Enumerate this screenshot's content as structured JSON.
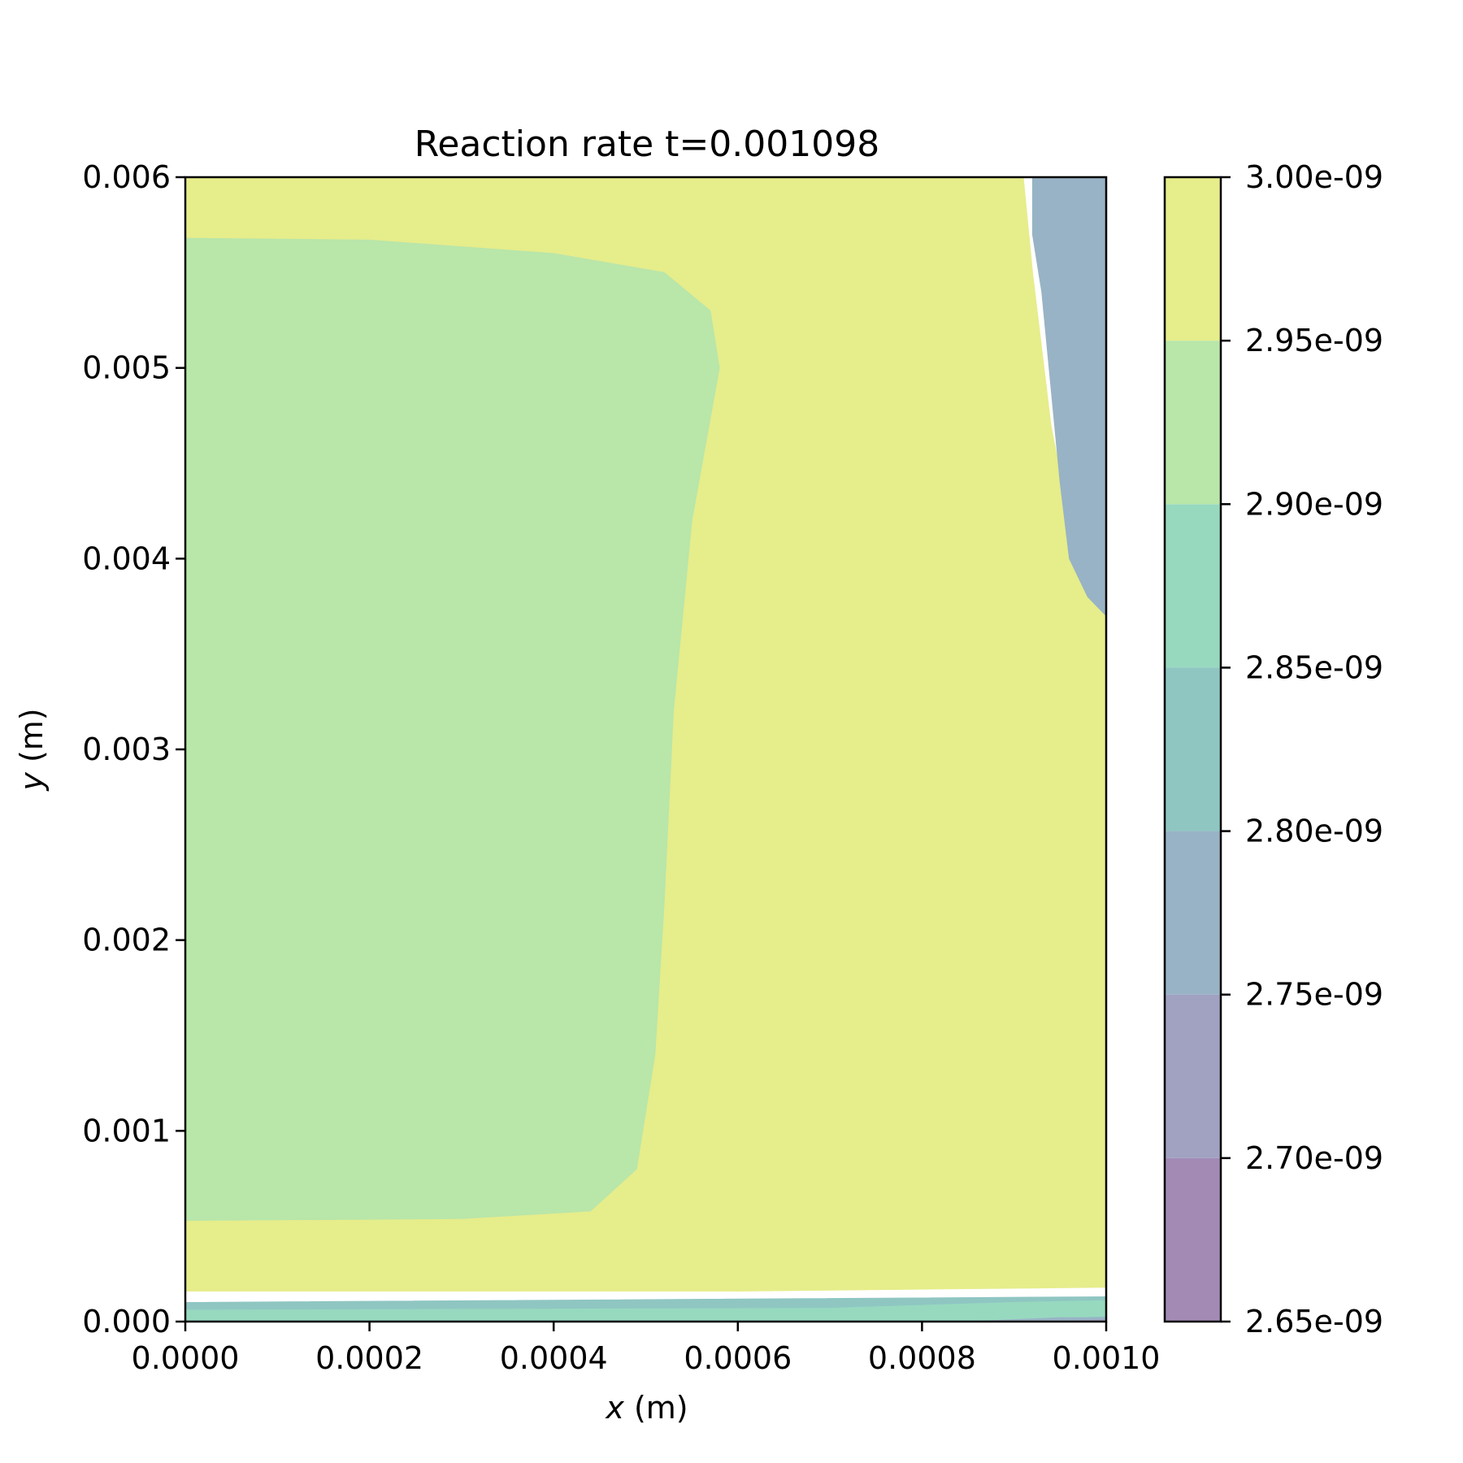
{
  "chart_data": {
    "type": "heatmap",
    "subtype": "filled-contour",
    "title": "Reaction rate t=0.001098",
    "xlabel": {
      "var": "x",
      "unit": " (m)"
    },
    "ylabel": {
      "var": "y",
      "unit": " (m)"
    },
    "xlim": [
      0,
      0.001
    ],
    "ylim": [
      0,
      0.006
    ],
    "x_ticks": [
      "0.0000",
      "0.0002",
      "0.0004",
      "0.0006",
      "0.0008",
      "0.0010"
    ],
    "y_ticks": [
      "0.000",
      "0.001",
      "0.002",
      "0.003",
      "0.004",
      "0.005",
      "0.006"
    ],
    "colorbar": {
      "levels": [
        2.65e-09,
        2.7e-09,
        2.75e-09,
        2.8e-09,
        2.85e-09,
        2.9e-09,
        2.95e-09,
        3e-09
      ],
      "tick_labels": [
        "2.65e-09",
        "2.70e-09",
        "2.75e-09",
        "2.80e-09",
        "2.85e-09",
        "2.90e-09",
        "2.95e-09",
        "3.00e-09"
      ],
      "band_colors": [
        "#a38ab5",
        "#a1a1c1",
        "#98b3c5",
        "#8fc6c2",
        "#97d9bf",
        "#b9e6a9",
        "#e6ed8b"
      ]
    },
    "regions": [
      {
        "band": "2.95e-09 – 3.00e-09",
        "color": "#e6ed8b",
        "polygon": [
          [
            0,
            0.00016
          ],
          [
            0.0006,
            0.00016
          ],
          [
            0.001,
            0.00018
          ],
          [
            0.001,
            0.0037
          ],
          [
            0.00098,
            0.0038
          ],
          [
            0.00096,
            0.0042
          ],
          [
            0.00094,
            0.0047
          ],
          [
            0.00092,
            0.0055
          ],
          [
            0.00091,
            0.006
          ],
          [
            0,
            0.006
          ]
        ]
      },
      {
        "band": "2.90e-09 – 2.95e-09",
        "color": "#b9e6a9",
        "polygon": [
          [
            0,
            0.00053
          ],
          [
            0.0003,
            0.00054
          ],
          [
            0.00044,
            0.00058
          ],
          [
            0.00049,
            0.0008
          ],
          [
            0.00051,
            0.0014
          ],
          [
            0.00052,
            0.0022
          ],
          [
            0.00053,
            0.0032
          ],
          [
            0.00055,
            0.0042
          ],
          [
            0.00058,
            0.005
          ],
          [
            0.00057,
            0.0053
          ],
          [
            0.00052,
            0.0055
          ],
          [
            0.0004,
            0.0056
          ],
          [
            0.0002,
            0.00567
          ],
          [
            0,
            0.00568
          ]
        ]
      },
      {
        "band": "2.75e-09 – 2.80e-09",
        "color": "#98b3c5",
        "polygon": [
          [
            0.00092,
            0.006
          ],
          [
            0.00092,
            0.0057
          ],
          [
            0.00093,
            0.0054
          ],
          [
            0.00094,
            0.0049
          ],
          [
            0.00095,
            0.0044
          ],
          [
            0.00096,
            0.004
          ],
          [
            0.00098,
            0.0038
          ],
          [
            0.001,
            0.0037
          ],
          [
            0.001,
            0.006
          ]
        ]
      },
      {
        "band": "2.80e-09 – 2.85e-09",
        "color": "#8fc6c2",
        "polygon": [
          [
            0,
            0.0001
          ],
          [
            0.001,
            0.00013
          ],
          [
            0.001,
            0.0
          ],
          [
            0,
            0.0
          ]
        ]
      },
      {
        "band": "2.85e-09 – 2.90e-09",
        "color": "#97d9bf",
        "polygon": [
          [
            0,
            6e-05
          ],
          [
            0.0007,
            7e-05
          ],
          [
            0.0009,
            0.0001
          ],
          [
            0.001,
            0.00011
          ],
          [
            0.001,
            3e-05
          ],
          [
            0.0009,
            1e-05
          ],
          [
            0,
            1e-05
          ]
        ]
      },
      {
        "band": "2.75e-09 – 2.80e-09",
        "color": "#98b3c5",
        "polygon": [
          [
            0.00085,
            0.0
          ],
          [
            0.00095,
            2e-05
          ],
          [
            0.001,
            2e-05
          ],
          [
            0.001,
            0.0
          ]
        ]
      },
      {
        "band": "2.70e-09 – 2.75e-09",
        "color": "#a1a1c1",
        "polygon": [
          [
            0.00094,
            0.0
          ],
          [
            0.001,
            1e-05
          ],
          [
            0.001,
            0.0
          ]
        ]
      }
    ],
    "grid": false
  }
}
